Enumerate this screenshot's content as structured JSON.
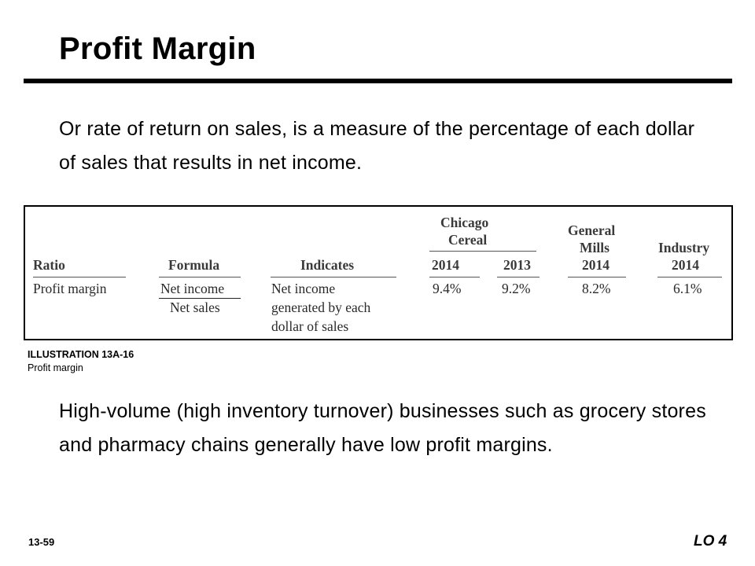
{
  "slide": {
    "title": "Profit Margin",
    "intro": "Or rate of return on sales, is a measure of the percentage of each dollar of sales that results in net income.",
    "note": "High-volume (high inventory turnover) businesses such as grocery stores and pharmacy chains generally have low profit margins.",
    "page_number": "13-59",
    "lo_label": "LO 4"
  },
  "table": {
    "group_chicago": [
      "Chicago",
      "Cereal"
    ],
    "group_general": [
      "General",
      "Mills"
    ],
    "group_industry": "Industry",
    "headers": {
      "ratio": "Ratio",
      "formula": "Formula",
      "indicates": "Indicates",
      "cc_2014": "2014",
      "cc_2013": "2013",
      "gm_2014": "2014",
      "ind_2014": "2014"
    },
    "row": {
      "ratio": "Profit margin",
      "formula_numerator": "Net income",
      "formula_denominator": "Net sales",
      "indicates": [
        "Net income",
        "generated by each",
        "dollar of sales"
      ],
      "cc_2014": "9.4%",
      "cc_2013": "9.2%",
      "gm_2014": "8.2%",
      "ind_2014": "6.1%"
    }
  },
  "caption": {
    "title": "ILLUSTRATION 13A-16",
    "subtitle": "Profit margin"
  }
}
